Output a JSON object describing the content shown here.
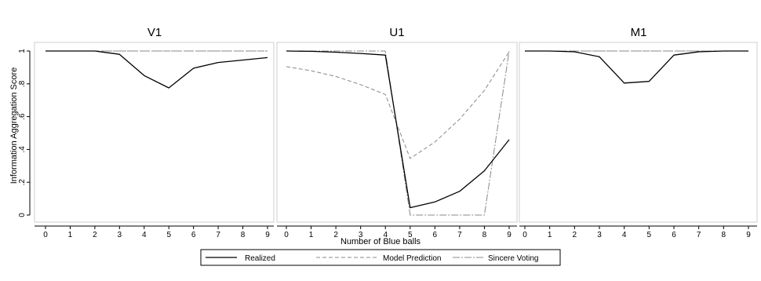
{
  "chart_data": {
    "type": "line",
    "ylabel": "Information Aggregation Score",
    "xlabel": "Number of Blue balls",
    "xlim": [
      0,
      9
    ],
    "ylim": [
      0,
      1
    ],
    "x_ticks": [
      "0",
      "1",
      "2",
      "3",
      "4",
      "5",
      "6",
      "7",
      "8",
      "9"
    ],
    "y_ticks": [
      "0",
      ".2",
      ".4",
      ".6",
      ".8",
      "1"
    ],
    "y_tick_values": [
      0,
      0.2,
      0.4,
      0.6,
      0.8,
      1
    ],
    "grid": false,
    "legend_position": "bottom",
    "x": [
      0,
      1,
      2,
      3,
      4,
      5,
      6,
      7,
      8,
      9
    ],
    "series_styles": [
      {
        "name": "Realized",
        "color": "#000000",
        "dash": "solid"
      },
      {
        "name": "Model Prediction",
        "color": "#888888",
        "dash": "dashed"
      },
      {
        "name": "Sincere Voting",
        "color": "#888888",
        "dash": "dashdot"
      }
    ],
    "panels": [
      {
        "title": "V1",
        "series": [
          {
            "name": "Realized",
            "values": [
              1,
              1,
              1,
              0.98,
              0.85,
              0.775,
              0.895,
              0.93,
              0.945,
              0.96
            ]
          },
          {
            "name": "Model Prediction",
            "values": [
              1,
              1,
              1,
              1,
              1,
              1,
              1,
              1,
              1,
              1
            ]
          },
          {
            "name": "Sincere Voting",
            "values": [
              1,
              1,
              1,
              1,
              1,
              1,
              1,
              1,
              1,
              1
            ]
          }
        ]
      },
      {
        "title": "U1",
        "series": [
          {
            "name": "Realized",
            "values": [
              1,
              0.998,
              0.993,
              0.985,
              0.975,
              0.045,
              0.08,
              0.145,
              0.27,
              0.46
            ]
          },
          {
            "name": "Model Prediction",
            "values": [
              0.905,
              0.88,
              0.845,
              0.795,
              0.735,
              0.345,
              0.445,
              0.585,
              0.76,
              0.995
            ]
          },
          {
            "name": "Sincere Voting",
            "values": [
              1,
              1,
              1,
              1,
              1,
              0,
              0,
              0,
              0,
              1
            ]
          }
        ]
      },
      {
        "title": "M1",
        "series": [
          {
            "name": "Realized",
            "values": [
              1,
              1,
              0.995,
              0.965,
              0.805,
              0.815,
              0.975,
              0.995,
              1,
              1
            ]
          },
          {
            "name": "Model Prediction",
            "values": [
              1,
              1,
              1,
              1,
              1,
              1,
              1,
              1,
              1,
              1
            ]
          },
          {
            "name": "Sincere Voting",
            "values": [
              1,
              1,
              1,
              1,
              1,
              1,
              1,
              1,
              1,
              1
            ]
          }
        ]
      }
    ]
  },
  "legend": {
    "items": [
      {
        "label": "Realized"
      },
      {
        "label": "Model Prediction"
      },
      {
        "label": "Sincere Voting"
      }
    ]
  }
}
